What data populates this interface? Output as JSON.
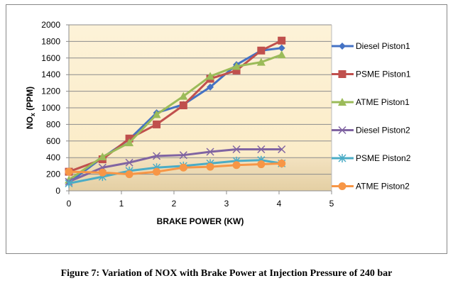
{
  "chart_data": {
    "type": "line",
    "title": "",
    "xlabel": "BRAKE POWER (KW)",
    "ylabel": "NOx (PPM)",
    "ylabel_main": "NO",
    "ylabel_sub": "x",
    "ylabel_rest": " (PPM)",
    "xlim": [
      0,
      5
    ],
    "ylim": [
      0,
      2000
    ],
    "xticks": [
      0,
      1,
      2,
      3,
      4,
      5
    ],
    "yticks": [
      0,
      200,
      400,
      600,
      800,
      1000,
      1200,
      1400,
      1600,
      1800,
      2000
    ],
    "grid": true,
    "legend_position": "right",
    "x": [
      0,
      0.64,
      1.15,
      1.67,
      2.18,
      2.69,
      3.19,
      3.66,
      4.05
    ],
    "series": [
      {
        "name": "Diesel Piston1",
        "color": "#4472c4",
        "marker": "diamond",
        "values": [
          100,
          400,
          620,
          940,
          1040,
          1250,
          1520,
          1690,
          1720
        ]
      },
      {
        "name": "PSME Piston1",
        "color": "#c0504d",
        "marker": "square",
        "values": [
          230,
          380,
          630,
          800,
          1030,
          1350,
          1450,
          1690,
          1810
        ]
      },
      {
        "name": "ATME Piston1",
        "color": "#9bbb59",
        "marker": "triangle",
        "values": [
          130,
          410,
          580,
          920,
          1140,
          1380,
          1500,
          1550,
          1640
        ]
      },
      {
        "name": "Diesel Piston2",
        "color": "#8064a2",
        "marker": "x",
        "values": [
          110,
          280,
          340,
          420,
          430,
          470,
          500,
          500,
          500
        ]
      },
      {
        "name": "PSME Piston2",
        "color": "#4bacc6",
        "marker": "star",
        "values": [
          90,
          170,
          240,
          280,
          300,
          330,
          360,
          370,
          330
        ]
      },
      {
        "name": "ATME Piston2",
        "color": "#f79646",
        "marker": "circle",
        "values": [
          230,
          220,
          200,
          230,
          280,
          290,
          310,
          320,
          330
        ]
      }
    ]
  },
  "caption": "Figure 7: Variation of NOX with Brake Power at Injection Pressure of 240 bar"
}
